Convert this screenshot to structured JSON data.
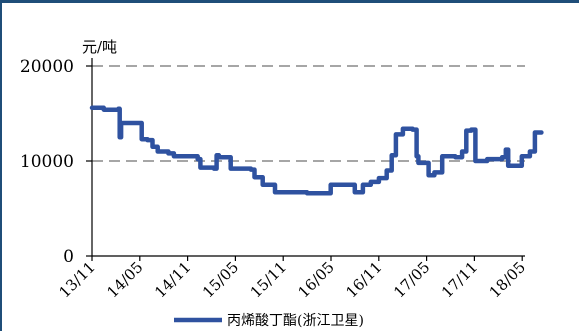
{
  "colors": {
    "frame": "#1f4e79",
    "series": "#2f52a0",
    "grid": "#a6a6a6",
    "axis": "#000000"
  },
  "chart_data": {
    "type": "line",
    "unit_label": "元/吨",
    "y_ticks": [
      "20000",
      "10000",
      "0"
    ],
    "ylim": [
      0,
      20000
    ],
    "x_ticks": [
      "13/11",
      "14/05",
      "14/11",
      "15/05",
      "15/11",
      "16/05",
      "16/11",
      "17/05",
      "17/11",
      "18/05"
    ],
    "grid": "horizontal-dashed",
    "legend_position": "bottom",
    "series": [
      {
        "name": "丙烯酸丁酯(浙江卫星)",
        "x": [
          "2013-11-01",
          "2013-12-15",
          "2013-12-16",
          "2014-02-10",
          "2014-02-15",
          "2014-02-20",
          "2014-03-01",
          "2014-05-01",
          "2014-05-10",
          "2014-06-01",
          "2014-06-20",
          "2014-07-10",
          "2014-08-20",
          "2014-09-10",
          "2014-11-01",
          "2014-12-10",
          "2014-12-20",
          "2015-01-10",
          "2015-02-10",
          "2015-02-20",
          "2015-03-01",
          "2015-04-15",
          "2015-05-10",
          "2015-07-01",
          "2015-07-15",
          "2015-08-15",
          "2015-09-10",
          "2015-10-01",
          "2015-11-01",
          "2016-02-01",
          "2016-03-01",
          "2016-05-01",
          "2016-06-01",
          "2016-07-15",
          "2016-08-01",
          "2016-09-01",
          "2016-10-01",
          "2016-11-01",
          "2016-12-01",
          "2016-12-20",
          "2017-01-05",
          "2017-02-01",
          "2017-03-10",
          "2017-03-25",
          "2017-04-01",
          "2017-05-10",
          "2017-06-01",
          "2017-07-01",
          "2017-08-01",
          "2017-08-20",
          "2017-09-15",
          "2017-10-01",
          "2017-10-20",
          "2017-11-05",
          "2017-12-20",
          "2018-01-10",
          "2018-02-15",
          "2018-03-01",
          "2018-03-10",
          "2018-04-01",
          "2018-05-01",
          "2018-06-01",
          "2018-06-20",
          "2018-07-15"
        ],
        "values": [
          15600,
          15600,
          15400,
          15500,
          12500,
          14000,
          14000,
          14000,
          12300,
          12200,
          11500,
          11000,
          10800,
          10500,
          10500,
          10200,
          9300,
          9300,
          9200,
          10600,
          10400,
          9200,
          9200,
          9100,
          8300,
          7500,
          7500,
          6700,
          6700,
          6600,
          6600,
          7500,
          7500,
          7500,
          6700,
          7500,
          7800,
          8200,
          9000,
          10600,
          12800,
          13400,
          13300,
          10500,
          9800,
          8500,
          8800,
          10500,
          10500,
          10400,
          11000,
          13200,
          13300,
          10000,
          10200,
          10200,
          10400,
          11200,
          9500,
          9500,
          10500,
          11000,
          13000,
          13000
        ]
      }
    ]
  }
}
